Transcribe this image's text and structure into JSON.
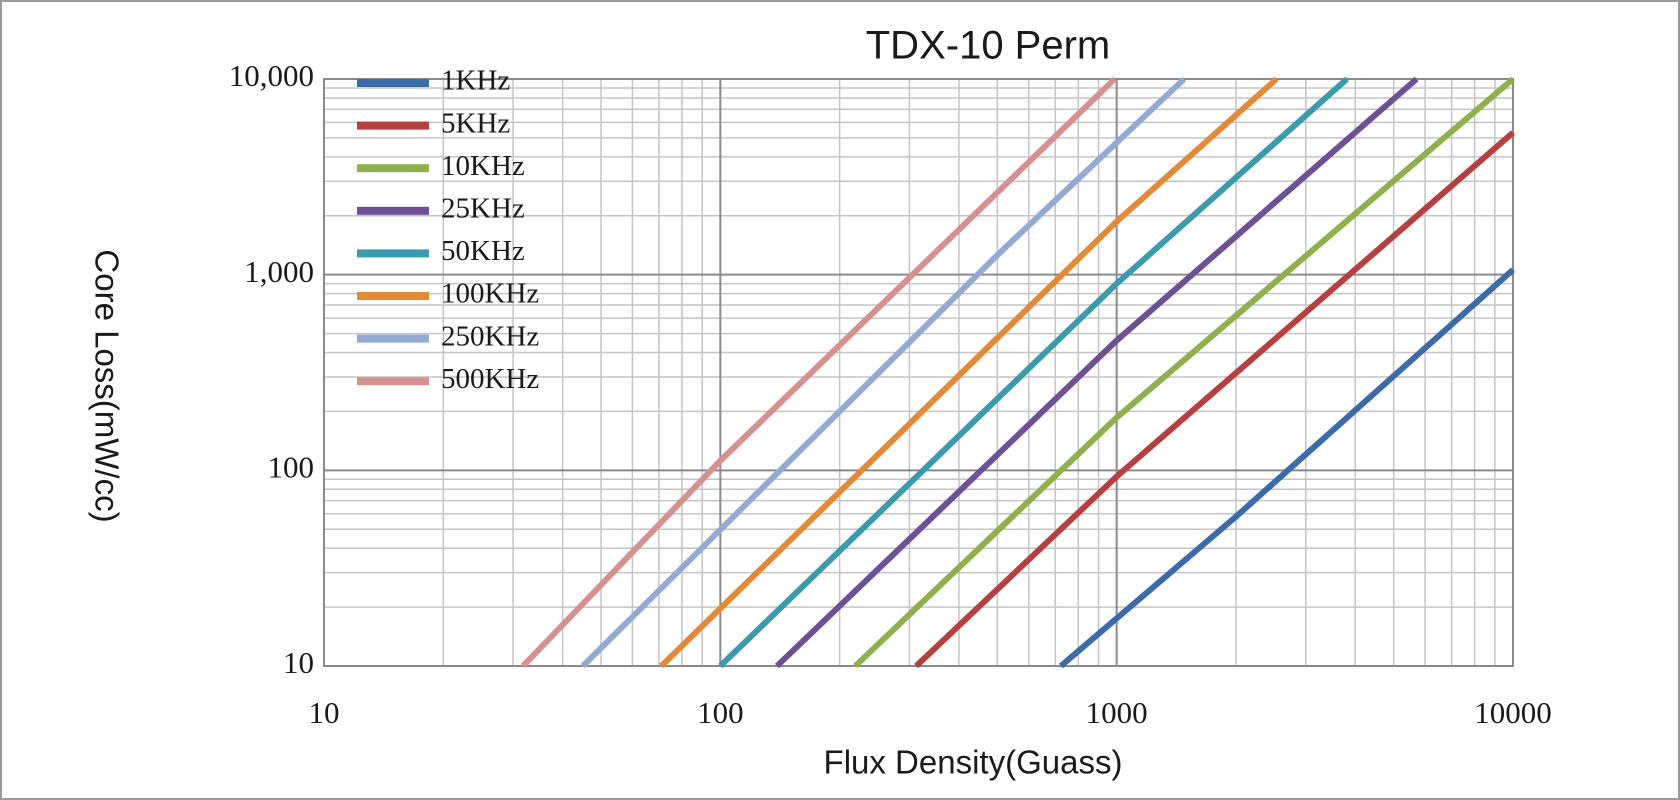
{
  "chart_data": {
    "type": "line",
    "title": "TDX-10 Perm",
    "x_label": "Flux Density(Guass)",
    "y_label": "Core Loss(mW/cc)",
    "log_x": true,
    "log_y": true,
    "grid": true,
    "minor_grid": true,
    "legend": "top-left",
    "xlim": [
      10,
      10000
    ],
    "xticks": [
      10,
      100,
      1000,
      10000
    ],
    "ylim": [
      10,
      10000
    ],
    "yticks": [
      {
        "value": 10,
        "label": "10"
      },
      {
        "value": 100,
        "label": "100"
      },
      {
        "value": 1000,
        "label": "1,000"
      },
      {
        "value": 10000,
        "label": "10,000"
      }
    ],
    "series": [
      {
        "name": "1KHz",
        "color": "#3b6ba9",
        "x": [
          723,
          2000,
          10000
        ],
        "values": [
          10,
          58,
          1060
        ]
      },
      {
        "name": "5KHz",
        "color": "#b5403e",
        "x": [
          312,
          1000,
          10000
        ],
        "values": [
          10,
          93,
          5320
        ]
      },
      {
        "name": "10KHz",
        "color": "#8fb04a",
        "x": [
          219,
          1000,
          10000
        ],
        "values": [
          10,
          186,
          10000
        ]
      },
      {
        "name": "25KHz",
        "color": "#6e5096",
        "x": [
          139,
          1000,
          5710
        ],
        "values": [
          10,
          461,
          10000
        ]
      },
      {
        "name": "50KHz",
        "color": "#3a9aae",
        "x": [
          100,
          1000,
          3810
        ],
        "values": [
          10,
          900,
          10000
        ]
      },
      {
        "name": "100KHz",
        "color": "#e38a37",
        "x": [
          71,
          1000,
          2530
        ],
        "values": [
          10,
          1870,
          10000
        ]
      },
      {
        "name": "250KHz",
        "color": "#93aad4",
        "x": [
          45,
          500,
          1480
        ],
        "values": [
          10,
          1260,
          10000
        ]
      },
      {
        "name": "500KHz",
        "color": "#d79090",
        "x": [
          31.8,
          100,
          988
        ],
        "values": [
          10,
          112,
          10000
        ]
      }
    ]
  }
}
